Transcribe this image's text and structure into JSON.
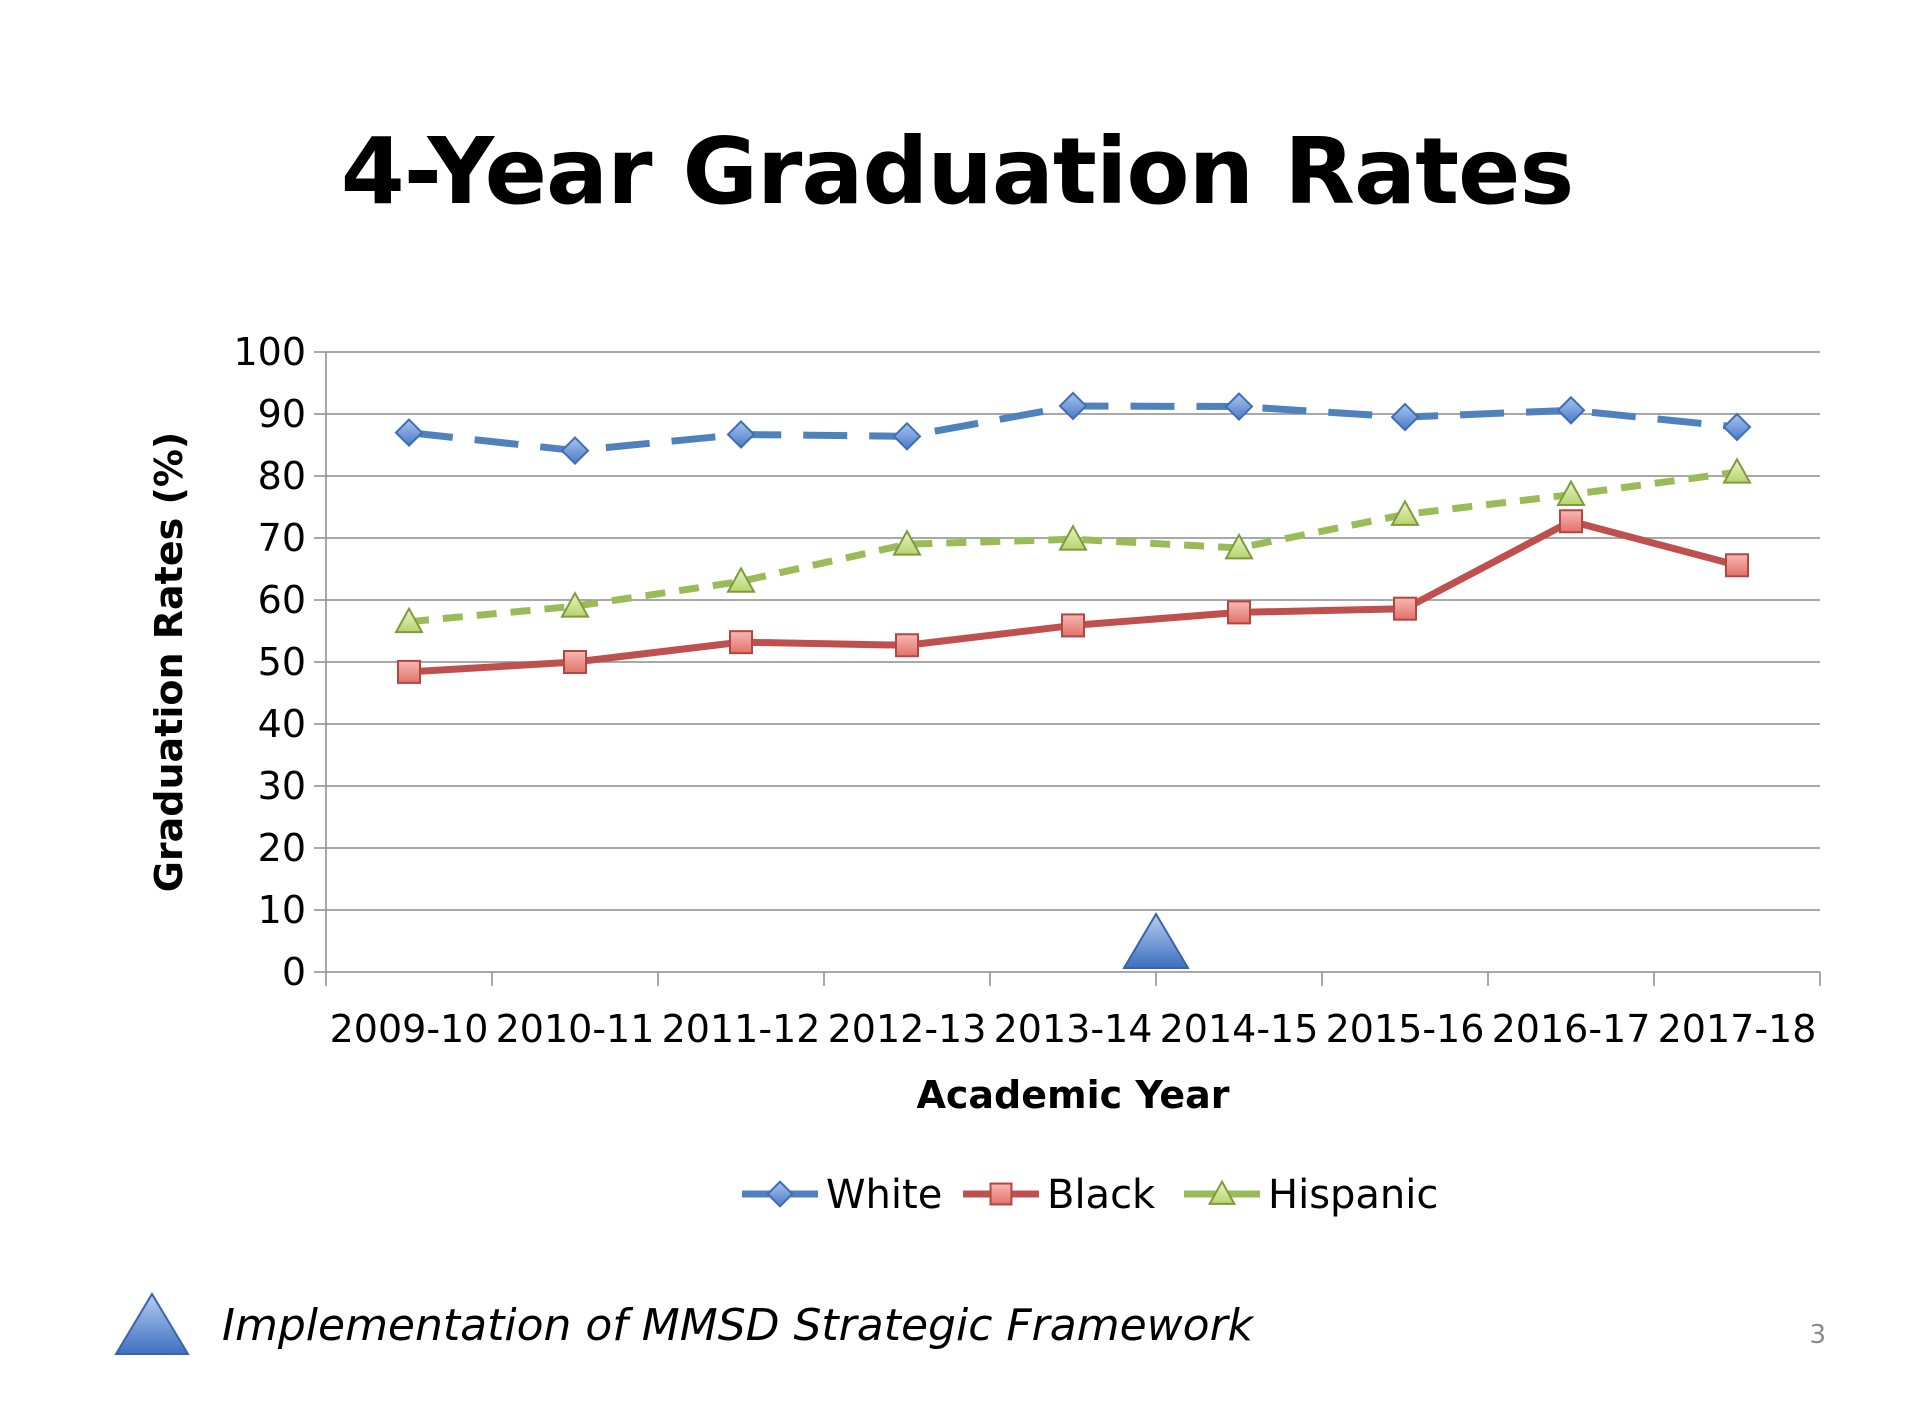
{
  "slide": {
    "title": "4-Year Graduation Rates",
    "note_text": "Implementation of MMSD Strategic Framework",
    "note_icon": "blue-triangle-icon",
    "page_number": "3"
  },
  "chart_data": {
    "type": "line",
    "categories": [
      "2009-10",
      "2010-11",
      "2011-12",
      "2012-13",
      "2013-14",
      "2014-15",
      "2015-16",
      "2016-17",
      "2017-18"
    ],
    "series": [
      {
        "name": "White",
        "values": [
          87.0,
          84.1,
          86.7,
          86.4,
          91.3,
          91.2,
          89.5,
          90.6,
          87.9
        ],
        "color": "#4f81bd",
        "marker": "diamond",
        "dash": "long-dash"
      },
      {
        "name": "Black",
        "values": [
          48.4,
          50.0,
          53.2,
          52.7,
          55.9,
          58.0,
          58.6,
          72.7,
          65.6
        ],
        "color": "#c0504d",
        "marker": "square",
        "dash": "solid"
      },
      {
        "name": "Hispanic",
        "values": [
          56.5,
          59.0,
          63.0,
          69.0,
          69.8,
          68.4,
          73.8,
          77.0,
          80.6
        ],
        "color": "#9bbb59",
        "marker": "triangle",
        "dash": "short-dash"
      }
    ],
    "xlabel": "Academic Year",
    "ylabel": "Graduation Rates (%)",
    "ylim": [
      0,
      100
    ],
    "yticks": [
      0,
      10,
      20,
      30,
      40,
      50,
      60,
      70,
      80,
      90,
      100
    ],
    "grid": true,
    "legend_position": "bottom",
    "annotation": {
      "marker": "blue-triangle",
      "category_boundary_after": "2013-14"
    }
  }
}
